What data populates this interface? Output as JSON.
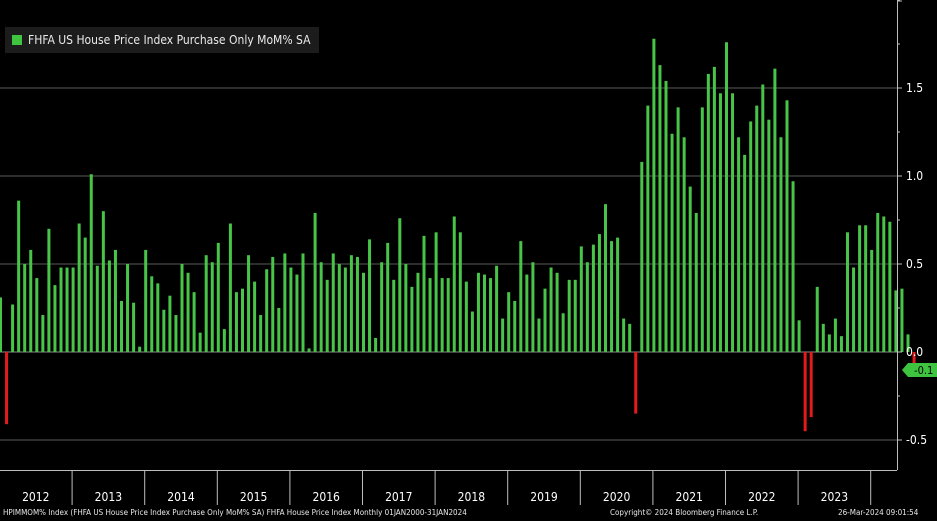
{
  "legend": {
    "label": "FHFA US House Price Index Purchase Only MoM% SA",
    "color": "#3fc43f"
  },
  "last_value": {
    "text": "-0.1",
    "value": -0.1,
    "color": "#3fc43f"
  },
  "footer": {
    "left": "HPIMMOM% Index (FHFA US House Price Index Purchase Only MoM% SA) FHFA House Price Index  Monthly 01JAN2000-31JAN2024",
    "center": "Copyright© 2024 Bloomberg Finance L.P.",
    "right": "26-Mar-2024 09:01:54"
  },
  "colors": {
    "positive": "#48c548",
    "negative": "#e31b1b",
    "grid": "#5a5a5a",
    "axis": "#bdbdbd"
  },
  "chart_data": {
    "type": "bar",
    "title": "FHFA US House Price Index Purchase Only MoM% SA",
    "frequency": "monthly",
    "ylim": [
      -0.68,
      2.0
    ],
    "yticks": [
      -0.5,
      0.0,
      0.5,
      1.0,
      1.5
    ],
    "ytick_labels": [
      "-0.5",
      "0.0",
      "0.5",
      "1.0",
      "1.5"
    ],
    "year_labels": [
      "2012",
      "2013",
      "2014",
      "2015",
      "2016",
      "2017",
      "2018",
      "2019",
      "2020",
      "2021",
      "2022",
      "2023"
    ],
    "values": [
      0.31,
      -0.41,
      0.27,
      0.86,
      0.5,
      0.58,
      0.42,
      0.21,
      0.7,
      0.38,
      0.48,
      0.48,
      0.48,
      0.73,
      0.65,
      1.01,
      0.49,
      0.8,
      0.52,
      0.58,
      0.29,
      0.5,
      0.28,
      0.03,
      0.58,
      0.43,
      0.39,
      0.24,
      0.32,
      0.21,
      0.5,
      0.45,
      0.34,
      0.11,
      0.55,
      0.51,
      0.62,
      0.13,
      0.73,
      0.34,
      0.36,
      0.55,
      0.4,
      0.21,
      0.47,
      0.54,
      0.25,
      0.56,
      0.48,
      0.44,
      0.56,
      0.02,
      0.79,
      0.51,
      0.41,
      0.56,
      0.5,
      0.48,
      0.55,
      0.54,
      0.45,
      0.64,
      0.08,
      0.51,
      0.62,
      0.41,
      0.76,
      0.5,
      0.37,
      0.45,
      0.66,
      0.42,
      0.68,
      0.42,
      0.42,
      0.77,
      0.68,
      0.4,
      0.23,
      0.45,
      0.44,
      0.42,
      0.49,
      0.19,
      0.34,
      0.29,
      0.63,
      0.44,
      0.51,
      0.19,
      0.36,
      0.48,
      0.45,
      0.22,
      0.41,
      0.41,
      0.6,
      0.51,
      0.61,
      0.67,
      0.84,
      0.63,
      0.65,
      0.19,
      0.16,
      -0.35,
      1.08,
      1.4,
      1.78,
      1.63,
      1.54,
      1.24,
      1.39,
      1.22,
      0.94,
      0.79,
      1.39,
      1.58,
      1.62,
      1.47,
      1.76,
      1.47,
      1.22,
      1.12,
      1.31,
      1.4,
      1.52,
      1.32,
      1.61,
      1.22,
      1.43,
      0.97,
      0.18,
      -0.45,
      -0.37,
      0.37,
      0.16,
      0.1,
      0.19,
      0.09,
      0.68,
      0.48,
      0.72,
      0.72,
      0.58,
      0.79,
      0.77,
      0.74,
      0.35,
      0.36,
      0.1,
      -0.1
    ]
  }
}
